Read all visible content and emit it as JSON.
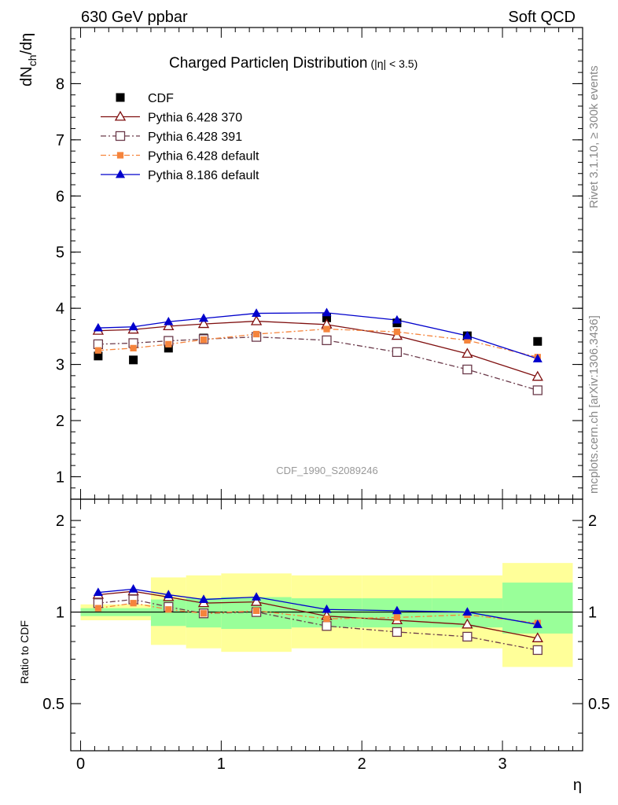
{
  "header": {
    "left": "630 GeV ppbar",
    "right": "Soft QCD"
  },
  "side_labels": {
    "upper": "Rivet 3.1.10, ≥ 300k events",
    "lower": "mcplots.cern.ch [arXiv:1306.3436]"
  },
  "colors": {
    "cdf": "#000000",
    "p370": "#7f0f0f",
    "p391": "#6b3a4a",
    "p6def": "#f5843c",
    "p8": "#0000cc",
    "band_inner": "#99ff99",
    "band_outer": "#ffff99"
  },
  "chart_data": [
    {
      "id": "main",
      "type": "scatter",
      "title": "Charged Particle",
      "title_symbol": "η",
      "title_tail": " Distribution",
      "title_condition": "(|η| < 3.5)",
      "ylabel": "dN_ch/dη",
      "ylabel_main": "dN",
      "ylabel_sub": "ch",
      "ylabel_tail": "/dη",
      "watermark": "CDF_1990_S2089246",
      "xlim": [
        -0.07,
        3.57
      ],
      "ylim": [
        0.6,
        9.0
      ],
      "yticks": [
        1,
        2,
        3,
        4,
        5,
        6,
        7,
        8
      ],
      "ytick_labels": [
        "1",
        "2",
        "3",
        "4",
        "5",
        "6",
        "7",
        "8"
      ],
      "x": [
        0.125,
        0.375,
        0.625,
        0.875,
        1.25,
        1.75,
        2.25,
        2.75,
        3.25
      ],
      "series": [
        {
          "name": "CDF",
          "marker": "square-filled",
          "line": "none",
          "values": [
            3.15,
            3.08,
            3.29,
            3.47,
            3.49,
            3.83,
            3.74,
            3.51,
            3.41
          ]
        },
        {
          "name": "Pythia 6.428 370",
          "marker": "triangle-open",
          "line": "solid",
          "values": [
            3.6,
            3.62,
            3.68,
            3.72,
            3.77,
            3.71,
            3.51,
            3.19,
            2.78
          ]
        },
        {
          "name": "Pythia 6.428 391",
          "marker": "square-open",
          "line": "dashdot",
          "values": [
            3.36,
            3.38,
            3.42,
            3.45,
            3.49,
            3.43,
            3.22,
            2.91,
            2.54
          ]
        },
        {
          "name": "Pythia 6.428 default",
          "marker": "square-small",
          "line": "dashdot",
          "values": [
            3.25,
            3.29,
            3.36,
            3.44,
            3.54,
            3.63,
            3.58,
            3.43,
            3.13
          ]
        },
        {
          "name": "Pythia 8.186 default",
          "marker": "triangle-filled",
          "line": "solid",
          "values": [
            3.65,
            3.67,
            3.76,
            3.82,
            3.91,
            3.92,
            3.79,
            3.51,
            3.1
          ]
        }
      ]
    },
    {
      "id": "ratio",
      "type": "line",
      "ylabel": "Ratio to CDF",
      "xlabel": "η",
      "xlim": [
        -0.07,
        3.57
      ],
      "ylim": [
        0.35,
        2.35
      ],
      "yticks": [
        0.5,
        1,
        2
      ],
      "ytick_labels": [
        "0.5",
        "1",
        "2"
      ],
      "xticks": [
        0,
        1,
        2,
        3
      ],
      "xtick_labels": [
        "0",
        "1",
        "2",
        "3"
      ],
      "reference_line": 1.0,
      "bins": [
        [
          0.0,
          0.5
        ],
        [
          0.5,
          0.75
        ],
        [
          0.75,
          1.0
        ],
        [
          1.0,
          1.5
        ],
        [
          1.5,
          2.0
        ],
        [
          2.0,
          2.5
        ],
        [
          2.5,
          3.0
        ],
        [
          3.0,
          3.5
        ]
      ],
      "band_inner": [
        [
          0.97,
          1.03
        ],
        [
          0.9,
          1.1
        ],
        [
          0.89,
          1.11
        ],
        [
          0.88,
          1.12
        ],
        [
          0.89,
          1.11
        ],
        [
          0.89,
          1.11
        ],
        [
          0.89,
          1.11
        ],
        [
          0.85,
          1.25
        ]
      ],
      "band_outer": [
        [
          0.94,
          1.06
        ],
        [
          0.78,
          1.3
        ],
        [
          0.76,
          1.32
        ],
        [
          0.74,
          1.34
        ],
        [
          0.76,
          1.32
        ],
        [
          0.76,
          1.32
        ],
        [
          0.76,
          1.32
        ],
        [
          0.66,
          1.45
        ]
      ],
      "x": [
        0.125,
        0.375,
        0.625,
        0.875,
        1.25,
        1.75,
        2.25,
        2.75,
        3.25
      ],
      "series": [
        {
          "name": "Pythia 6.428 370",
          "marker": "triangle-open",
          "line": "solid",
          "values": [
            1.14,
            1.17,
            1.12,
            1.07,
            1.08,
            0.97,
            0.94,
            0.91,
            0.82
          ]
        },
        {
          "name": "Pythia 6.428 391",
          "marker": "square-open",
          "line": "dashdot",
          "values": [
            1.07,
            1.1,
            1.04,
            0.99,
            1.0,
            0.9,
            0.86,
            0.83,
            0.75
          ]
        },
        {
          "name": "Pythia 6.428 default",
          "marker": "square-small",
          "line": "dashdot",
          "values": [
            1.03,
            1.07,
            1.02,
            0.99,
            1.01,
            0.95,
            0.96,
            0.98,
            0.92
          ]
        },
        {
          "name": "Pythia 8.186 default",
          "marker": "triangle-filled",
          "line": "solid",
          "values": [
            1.16,
            1.19,
            1.14,
            1.1,
            1.12,
            1.02,
            1.01,
            1.0,
            0.91
          ]
        }
      ]
    }
  ]
}
